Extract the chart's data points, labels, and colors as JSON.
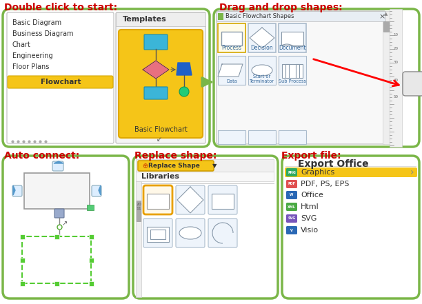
{
  "title_top_left": "Double click to start:",
  "title_top_right": "Drag and drop shapes:",
  "title_bot_left": "Auto connect:",
  "title_bot_mid": "Replace shape:",
  "title_bot_right": "Export file:",
  "title_color": "#cc0000",
  "title_fontsize": 10,
  "bg_color": "#ffffff",
  "border_color": "#7ab648",
  "border_lw": 2.5,
  "list_items": [
    "Basic Diagram",
    "Business Diagram",
    "Chart",
    "Engineering",
    "Floor Plans",
    "Flowchart"
  ],
  "flowchart_selected_color": "#f5c518",
  "template_bg": "#f5c518",
  "export_items": [
    "Graphics",
    "PDF, PS, EPS",
    "Office",
    "Html",
    "SVG",
    "Visio"
  ],
  "export_selected": "Graphics",
  "export_selected_color": "#f5c518",
  "icon_colors": [
    "#2eaa60",
    "#e05050",
    "#2a68b5",
    "#4aaa44",
    "#7755bb",
    "#2a68b5"
  ],
  "icon_labels": [
    "",
    "",
    "W",
    "",
    "SVG",
    "V"
  ]
}
